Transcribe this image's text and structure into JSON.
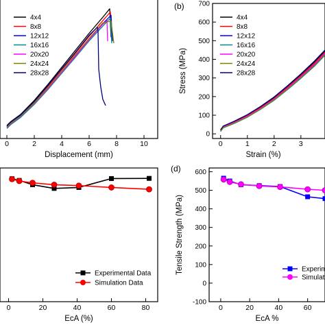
{
  "chart_data": [
    {
      "type": "line",
      "panel_label": "",
      "xlabel": "Displacement (mm)",
      "ylabel": "",
      "xlim": [
        -0.5,
        11
      ],
      "ylim": [
        -25,
        700
      ],
      "xticks": [
        "0",
        "2",
        "4",
        "6",
        "8",
        "10"
      ],
      "legend_position": "top-left",
      "series": [
        {
          "name": "4x4",
          "color": "#000000",
          "x": [
            0,
            0.3,
            1,
            2,
            3,
            4,
            5,
            6,
            7,
            7.5,
            7.6
          ],
          "y": [
            40,
            60,
            95,
            165,
            245,
            330,
            415,
            500,
            580,
            622,
            480
          ]
        },
        {
          "name": "8x8",
          "color": "#ff0000",
          "x": [
            0,
            0.3,
            1,
            2,
            3,
            4,
            5,
            6,
            7,
            7.55,
            7.65
          ],
          "y": [
            35,
            55,
            90,
            158,
            236,
            318,
            400,
            485,
            563,
            606,
            470
          ]
        },
        {
          "name": "12x12",
          "color": "#0000ff",
          "x": [
            0,
            0.3,
            1,
            2,
            3,
            4,
            5,
            6,
            7,
            7.6,
            7.7
          ],
          "y": [
            30,
            50,
            85,
            150,
            228,
            308,
            390,
            472,
            548,
            590,
            460
          ]
        },
        {
          "name": "16x16",
          "color": "#008b8b",
          "x": [
            0,
            0.3,
            1,
            2,
            3,
            4,
            5,
            6,
            7,
            7.55,
            7.65
          ],
          "y": [
            25,
            45,
            80,
            145,
            220,
            300,
            380,
            462,
            536,
            576,
            450
          ]
        },
        {
          "name": "20x20",
          "color": "#ff00ff",
          "x": [
            0,
            0.3,
            1,
            2,
            3,
            4,
            5,
            6,
            7,
            7.3,
            7.35
          ],
          "y": [
            30,
            50,
            85,
            150,
            225,
            305,
            385,
            468,
            545,
            563,
            460
          ]
        },
        {
          "name": "24x24",
          "color": "#808000",
          "x": [
            0,
            0.3,
            1,
            2,
            3,
            4,
            5,
            6,
            7,
            7.6,
            7.8
          ],
          "y": [
            32,
            52,
            87,
            152,
            230,
            310,
            392,
            474,
            552,
            560,
            450
          ]
        },
        {
          "name": "28x28",
          "color": "#000080",
          "x": [
            0,
            0.3,
            1,
            2,
            3,
            4,
            5,
            6,
            6.6,
            6.65,
            6.7,
            6.85,
            7.0,
            7.2
          ],
          "y": [
            38,
            58,
            92,
            160,
            240,
            322,
            405,
            490,
            530,
            510,
            320,
            230,
            170,
            140
          ]
        }
      ]
    },
    {
      "type": "line",
      "panel_label": "(b)",
      "xlabel": "Strain (%)",
      "ylabel": "Stress (MPa)",
      "xlim": [
        -0.3,
        3.9
      ],
      "ylim": [
        -25,
        700
      ],
      "xticks": [
        "0",
        "1",
        "2",
        "3"
      ],
      "yticks": [
        "0",
        "100",
        "200",
        "300",
        "400",
        "500",
        "600",
        "700"
      ],
      "legend_position": "top-left",
      "series": [
        {
          "name": "4x4",
          "color": "#000000",
          "x": [
            0,
            0.1,
            0.5,
            1,
            1.5,
            2,
            2.5,
            3,
            3.5,
            3.9
          ],
          "y": [
            20,
            40,
            65,
            100,
            145,
            195,
            255,
            318,
            385,
            445
          ]
        },
        {
          "name": "8x8",
          "color": "#ff0000",
          "x": [
            0,
            0.1,
            0.5,
            1,
            1.5,
            2,
            2.5,
            3,
            3.5,
            3.9
          ],
          "y": [
            18,
            38,
            62,
            97,
            141,
            190,
            249,
            312,
            378,
            438
          ]
        },
        {
          "name": "12x12",
          "color": "#0000ff",
          "x": [
            0,
            0.1,
            0.5,
            1,
            1.5,
            2,
            2.5,
            3,
            3.5,
            3.9
          ],
          "y": [
            15,
            35,
            58,
            93,
            136,
            185,
            243,
            305,
            370,
            430
          ]
        },
        {
          "name": "16x16",
          "color": "#008b8b",
          "x": [
            0,
            0.1,
            0.5,
            1,
            1.5,
            2,
            2.5,
            3,
            3.5,
            3.9
          ],
          "y": [
            12,
            32,
            55,
            89,
            132,
            180,
            237,
            298,
            362,
            422
          ]
        },
        {
          "name": "20x20",
          "color": "#ff00ff",
          "x": [
            0,
            0.1,
            0.5,
            1,
            1.5,
            2,
            2.5,
            3,
            3.5,
            3.9
          ],
          "y": [
            16,
            36,
            60,
            95,
            138,
            187,
            245,
            308,
            373,
            433
          ]
        },
        {
          "name": "24x24",
          "color": "#808000",
          "x": [
            0,
            0.1,
            0.5,
            1,
            1.5,
            2,
            2.5,
            3,
            3.5,
            3.9
          ],
          "y": [
            14,
            34,
            57,
            91,
            134,
            183,
            240,
            302,
            366,
            426
          ]
        },
        {
          "name": "28x28",
          "color": "#000080",
          "x": [
            0,
            0.1,
            0.5,
            1,
            1.5,
            2,
            2.5,
            3,
            3.5,
            3.9
          ],
          "y": [
            22,
            42,
            67,
            103,
            148,
            198,
            258,
            322,
            390,
            450
          ]
        }
      ]
    },
    {
      "type": "line",
      "panel_label": "",
      "xlabel": "EcA (%)",
      "ylabel": "",
      "xlim": [
        -5,
        87
      ],
      "ylim": [
        -100,
        620
      ],
      "xticks": [
        "0",
        "20",
        "40",
        "60",
        "80"
      ],
      "legend_position": "bottom-right",
      "series": [
        {
          "name": "Experimental Data",
          "color": "#000000",
          "marker": "square",
          "x": [
            2,
            6.25,
            14,
            26.6,
            41,
            60,
            82
          ],
          "y": [
            562,
            553,
            530,
            510,
            515,
            563,
            564
          ]
        },
        {
          "name": "Simulation Data",
          "color": "#ff0000",
          "marker": "circle",
          "x": [
            2,
            6.25,
            14,
            26.6,
            41,
            60,
            82
          ],
          "y": [
            560,
            550,
            540,
            530,
            525,
            515,
            505
          ]
        }
      ]
    },
    {
      "type": "line",
      "panel_label": "(d)",
      "xlabel": "EcA %",
      "ylabel": "Tensile Strength (MPa)",
      "xlim": [
        -8,
        72
      ],
      "ylim": [
        -100,
        620
      ],
      "xticks": [
        "0",
        "20",
        "40",
        "60"
      ],
      "yticks": [
        "-100",
        "0",
        "100",
        "200",
        "300",
        "400",
        "500",
        "600"
      ],
      "legend_position": "bottom-right",
      "legend_labels": [
        "Experim",
        "Simulat"
      ],
      "series": [
        {
          "name": "Experimental Data",
          "color": "#0000ff",
          "marker": "square",
          "x": [
            2,
            6.25,
            14,
            26.6,
            41,
            60,
            72
          ],
          "y": [
            565,
            550,
            530,
            525,
            520,
            465,
            455
          ]
        },
        {
          "name": "Simulation Data",
          "color": "#ff00ff",
          "marker": "circle",
          "x": [
            2,
            6.25,
            14,
            26.6,
            41,
            60,
            72
          ],
          "y": [
            558,
            545,
            532,
            523,
            518,
            505,
            500
          ]
        }
      ]
    }
  ]
}
